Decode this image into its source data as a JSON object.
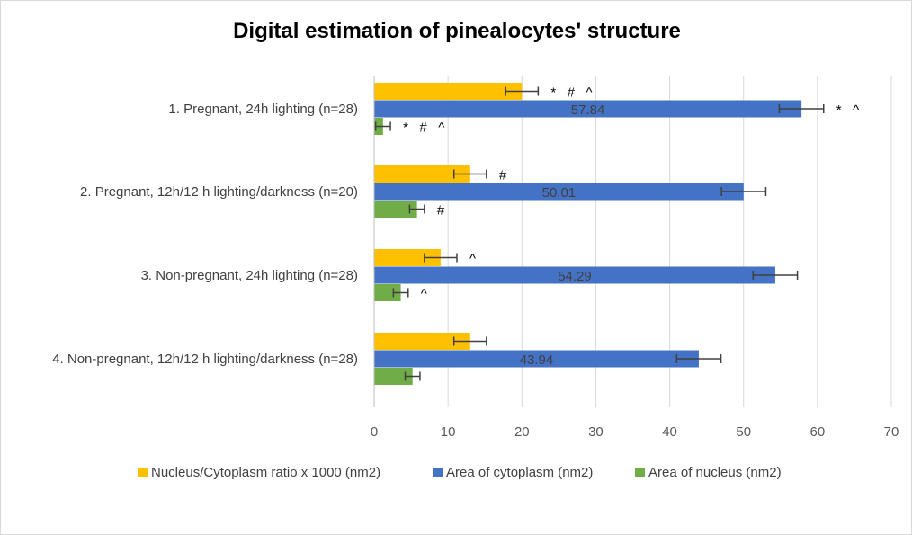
{
  "chart_data": {
    "type": "bar",
    "orientation": "horizontal",
    "title": "Digital estimation of pinealocytes' structure",
    "xlabel": "",
    "ylabel": "",
    "xlim": [
      0,
      70
    ],
    "x_ticks": [
      "0",
      "10",
      "20",
      "30",
      "40",
      "50",
      "60",
      "70"
    ],
    "grid": "vertical",
    "legend_position": "bottom",
    "categories": [
      "1. Pregnant, 24h lighting (n=28)",
      "2. Pregnant, 12h/12 h lighting/darkness (n=20)",
      "3. Non-pregnant, 24h lighting (n=28)",
      "4. Non-pregnant, 12h/12 h lighting/darkness (n=28)"
    ],
    "series": [
      {
        "name": "Nucleus/Cytoplasm ratio x 1000 (nm2)",
        "color": "#FFC000",
        "values": [
          20.0,
          13.0,
          9.0,
          13.0
        ],
        "errors": [
          2.2,
          2.2,
          2.2,
          2.2
        ],
        "data_labels": [
          "",
          "",
          "",
          ""
        ],
        "annotations": [
          "*   #   ^",
          "#",
          "^",
          ""
        ]
      },
      {
        "name": "Area of cytoplasm (nm2)",
        "color": "#4472C4",
        "values": [
          57.84,
          50.01,
          54.29,
          43.94
        ],
        "errors": [
          3.0,
          3.0,
          3.0,
          3.0
        ],
        "data_labels": [
          "57.84",
          "50.01",
          "54.29",
          "43.94"
        ],
        "annotations": [
          "*   ^",
          "",
          "",
          ""
        ]
      },
      {
        "name": "Area of nucleus (nm2)",
        "color": "#70AD47",
        "values": [
          1.2,
          5.8,
          3.6,
          5.2
        ],
        "errors": [
          1.0,
          1.0,
          1.0,
          1.0
        ],
        "data_labels": [
          "",
          "",
          "",
          ""
        ],
        "annotations": [
          "*   #   ^",
          "#",
          "^",
          ""
        ]
      }
    ]
  }
}
